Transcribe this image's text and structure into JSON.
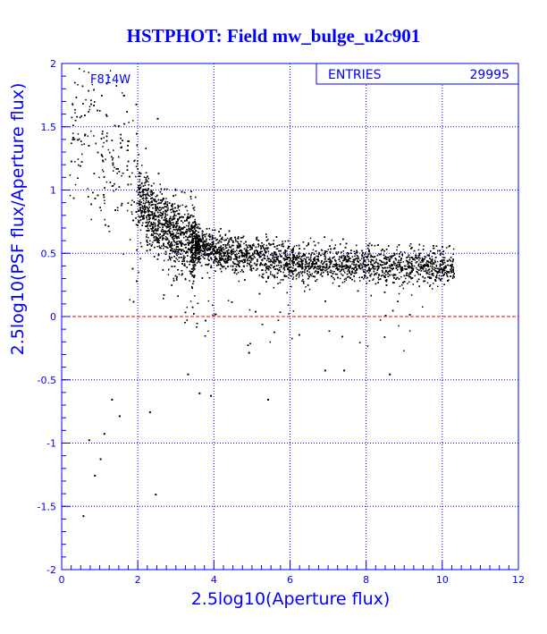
{
  "chart_data": {
    "type": "scatter",
    "title": "HSTPHOT: Field mw_bulge_u2c901",
    "xlabel": "2.5log10(Aperture flux)",
    "ylabel": "2.5log10(PSF flux/Aperture flux)",
    "xlim": [
      0,
      12
    ],
    "ylim": [
      -2,
      2
    ],
    "x_ticks": [
      "0",
      "2",
      "4",
      "6",
      "8",
      "10",
      "12"
    ],
    "y_ticks": [
      "-2",
      "-1.5",
      "-1",
      "-0.5",
      "0",
      "0.5",
      "1",
      "1.5",
      "2"
    ],
    "grid": true,
    "grid_style": "dotted",
    "reference_line": {
      "y": 0,
      "color": "#ff0000",
      "style": "dashed"
    },
    "filter_label": "F814W",
    "stats_box": {
      "label": "ENTRIES",
      "value": "29995"
    },
    "trend": {
      "x": [
        0.6,
        1.0,
        1.5,
        2.0,
        2.5,
        3.0,
        3.5,
        4.0,
        5.0,
        6.0,
        7.0,
        8.0,
        9.0,
        10.0,
        10.4
      ],
      "y": [
        1.55,
        1.4,
        1.2,
        0.95,
        0.75,
        0.65,
        0.58,
        0.52,
        0.47,
        0.44,
        0.42,
        0.41,
        0.4,
        0.4,
        0.4
      ]
    },
    "outlier_points": [
      {
        "x": 0.55,
        "y": -1.57
      },
      {
        "x": 0.85,
        "y": -1.25
      },
      {
        "x": 1.0,
        "y": -1.12
      },
      {
        "x": 0.7,
        "y": -0.97
      },
      {
        "x": 1.1,
        "y": -0.92
      },
      {
        "x": 1.3,
        "y": -0.65
      },
      {
        "x": 1.5,
        "y": -0.78
      },
      {
        "x": 2.3,
        "y": -0.75
      },
      {
        "x": 2.45,
        "y": -1.4
      },
      {
        "x": 3.6,
        "y": -0.6
      },
      {
        "x": 3.9,
        "y": -0.62
      },
      {
        "x": 5.4,
        "y": -0.65
      },
      {
        "x": 8.6,
        "y": -0.45
      },
      {
        "x": 7.4,
        "y": -0.42
      },
      {
        "x": 6.9,
        "y": -0.42
      },
      {
        "x": 2.5,
        "y": 1.57
      },
      {
        "x": 4.9,
        "y": -0.28
      },
      {
        "x": 3.3,
        "y": -0.45
      }
    ],
    "series": [
      {
        "name": "",
        "color": "#000000",
        "n_points": 29995
      }
    ]
  }
}
